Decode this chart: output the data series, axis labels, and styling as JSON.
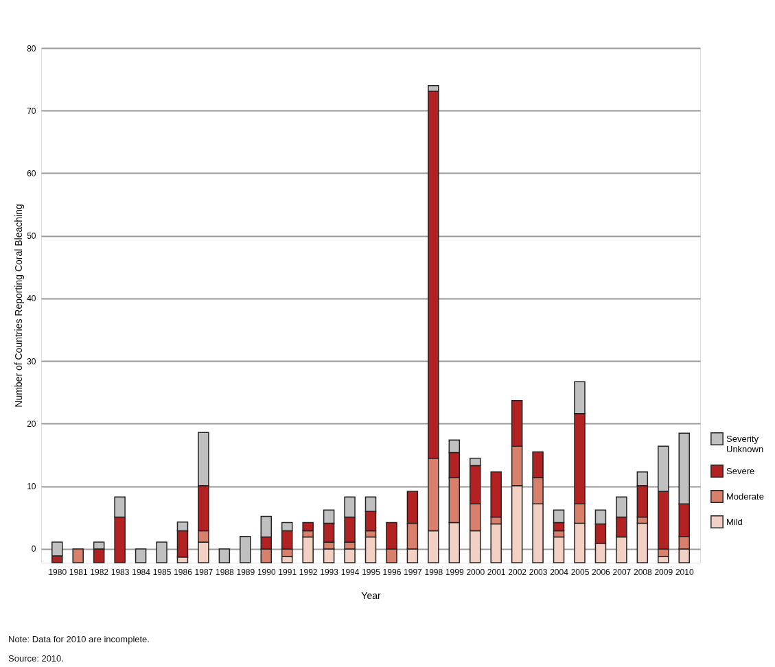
{
  "chart_data": {
    "type": "bar",
    "xlabel": "Year",
    "ylabel": "Number of Countries Reporting Coral Bleaching",
    "categories": [
      "1980",
      "1981",
      "1982",
      "1983",
      "1984",
      "1985",
      "1986",
      "1987",
      "1988",
      "1989",
      "1990",
      "1991",
      "1992",
      "1993",
      "1994",
      "1995",
      "1996",
      "1997",
      "1998",
      "1999",
      "2000",
      "2001",
      "2002",
      "2003",
      "2004",
      "2005",
      "2006",
      "2007",
      "2008",
      "2009",
      "2010"
    ],
    "series": [
      {
        "name": "Mild",
        "color": "#f2d0c4",
        "values": [
          null,
          null,
          null,
          null,
          null,
          null,
          0.9,
          3.3,
          null,
          null,
          null,
          1.0,
          4.1,
          2.2,
          2.2,
          4.1,
          null,
          2.2,
          5.1,
          6.4,
          5.1,
          6.2,
          12.3,
          9.4,
          4.1,
          6.3,
          3.1,
          4.1,
          6.3,
          1.0,
          2.2
        ],
        "base": [
          null,
          null,
          null,
          null,
          null,
          null,
          -2.2,
          -2.2,
          null,
          null,
          null,
          -2.2,
          -2.2,
          -2.2,
          -2.2,
          -2.2,
          null,
          -2.2,
          -2.2,
          -2.2,
          -2.2,
          -2.2,
          -2.2,
          -2.2,
          -2.2,
          -2.2,
          -2.2,
          -2.2,
          -2.2,
          -2.2,
          -2.2
        ]
      },
      {
        "name": "Moderate",
        "color": "#d9806c",
        "values": [
          null,
          2.2,
          null,
          null,
          null,
          null,
          null,
          1.8,
          null,
          null,
          2.2,
          1.2,
          1.0,
          1.1,
          1.1,
          1.0,
          2.2,
          4.1,
          11.6,
          7.2,
          4.3,
          1.1,
          6.3,
          4.2,
          1.0,
          3.1,
          null,
          null,
          1.0,
          1.2,
          2.0
        ],
        "base": [
          null,
          -2.2,
          null,
          null,
          null,
          null,
          null,
          1.1,
          null,
          null,
          -2.2,
          -1.2,
          1.9,
          0,
          0,
          1.9,
          -2.2,
          0,
          2.9,
          4.2,
          2.9,
          4.0,
          10.1,
          7.2,
          1.9,
          4.1,
          null,
          null,
          4.1,
          -1.2,
          0
        ]
      },
      {
        "name": "Severe",
        "color": "#b22222",
        "values": [
          1.1,
          null,
          2.2,
          7.3,
          null,
          null,
          4.2,
          7.2,
          null,
          null,
          1.9,
          2.9,
          1.3,
          3.0,
          4.0,
          3.1,
          4.2,
          5.1,
          58.6,
          4.0,
          6.1,
          7.2,
          7.3,
          4.1,
          1.3,
          14.4,
          3.1,
          3.2,
          5.0,
          9.2,
          5.2
        ],
        "base": [
          -2.2,
          null,
          -2.2,
          -2.2,
          null,
          null,
          -1.3,
          2.9,
          null,
          null,
          0,
          0,
          2.9,
          1.1,
          1.1,
          2.9,
          0,
          4.1,
          14.5,
          11.4,
          7.2,
          5.1,
          16.4,
          11.4,
          2.9,
          7.2,
          0.9,
          1.9,
          5.1,
          0,
          2.0
        ]
      },
      {
        "name": "Severity Unknown",
        "color": "#c0c0c0",
        "values": [
          2.2,
          null,
          1.1,
          3.2,
          2.2,
          3.3,
          1.4,
          8.5,
          2.2,
          4.2,
          3.3,
          1.3,
          null,
          2.1,
          3.2,
          2.3,
          null,
          null,
          0.9,
          2.0,
          1.2,
          null,
          null,
          null,
          2.0,
          5.1,
          2.2,
          3.2,
          2.2,
          7.2,
          11.3
        ],
        "base": [
          -1.1,
          null,
          0,
          5.1,
          -2.2,
          -2.2,
          2.9,
          10.1,
          -2.2,
          -2.2,
          1.9,
          2.9,
          null,
          4.1,
          5.1,
          6.0,
          null,
          null,
          73.1,
          15.4,
          13.3,
          null,
          null,
          null,
          4.2,
          21.6,
          4.0,
          5.1,
          10.1,
          9.2,
          7.2
        ]
      }
    ],
    "ylim": [
      -2.2,
      80
    ],
    "yticks": [
      0,
      10,
      20,
      30,
      40,
      50,
      60,
      70,
      80
    ],
    "grid": "y",
    "legend": "right",
    "annotations": [
      "Note: Data for 2010 are incomplete.",
      "Source: 2010."
    ]
  }
}
